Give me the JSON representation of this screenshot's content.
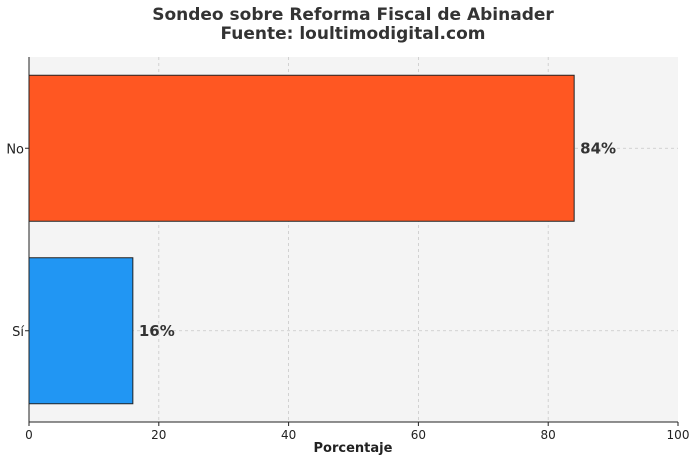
{
  "chart_data": {
    "type": "bar",
    "orientation": "horizontal",
    "title": "Sondeo sobre Reforma Fiscal de Abinader",
    "subtitle": "Fuente: loultimodigital.com",
    "categories": [
      "No",
      "Sí"
    ],
    "values": [
      84,
      16
    ],
    "data_labels": [
      "84%",
      "16%"
    ],
    "bar_colors": [
      "#ff5722",
      "#2196f3"
    ],
    "xlabel": "Porcentaje",
    "ylabel": "",
    "xlim": [
      0,
      100
    ],
    "xticks": [
      0,
      20,
      40,
      60,
      80,
      100
    ],
    "grid": true,
    "background": "#f4f4f4"
  }
}
